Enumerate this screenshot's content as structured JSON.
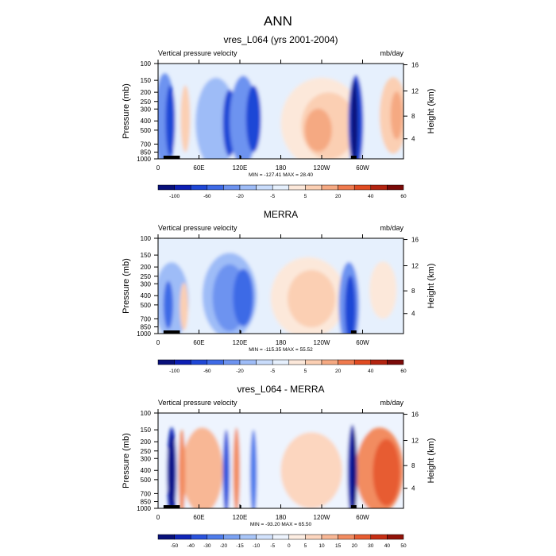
{
  "title": "ANN",
  "colors": {
    "seq": [
      "#08107a",
      "#0d1fb4",
      "#1f47d6",
      "#3e6ae6",
      "#6d93f0",
      "#9ebcf7",
      "#c9dcfb",
      "#e6f0fd",
      "#fce8da",
      "#fbcfb3",
      "#f5a982",
      "#ef7a4e",
      "#e04b21",
      "#b32410",
      "#7a0a08"
    ],
    "diff": [
      "#08107a",
      "#0f25b8",
      "#2a53dd",
      "#4e7ceb",
      "#7ba2f3",
      "#a8c5f8",
      "#d2e2fc",
      "#eef4fe",
      "#fdeee3",
      "#fcd6bf",
      "#f8b795",
      "#f28c61",
      "#e75c31",
      "#c72f14",
      "#921208"
    ]
  },
  "chart_data": [
    {
      "type": "heatmap",
      "title": "vres_L064 (yrs 2001-2004)",
      "left_label": "Vertical pressure velocity",
      "right_label": "mb/day",
      "ylabel": "Pressure (mb)",
      "y2label": "Height (km)",
      "x_ticks": [
        "0",
        "60E",
        "120E",
        "180",
        "120W",
        "60W"
      ],
      "y_ticks": [
        "100",
        "150",
        "200",
        "250",
        "300",
        "400",
        "500",
        "700",
        "850",
        "1000"
      ],
      "y2_ticks": [
        "16",
        "12",
        "8",
        "4"
      ],
      "minmax": "MIN = -127.41  MAX =  28.40",
      "colorbar_labels": [
        "-100",
        "-60",
        "-20",
        "-5",
        "5",
        "20",
        "40",
        "60"
      ],
      "palette": "seq"
    },
    {
      "type": "heatmap",
      "title": "MERRA",
      "left_label": "Vertical pressure velocity",
      "right_label": "mb/day",
      "ylabel": "Pressure (mb)",
      "y2label": "Height (km)",
      "x_ticks": [
        "0",
        "60E",
        "120E",
        "180",
        "120W",
        "60W"
      ],
      "y_ticks": [
        "100",
        "150",
        "200",
        "250",
        "300",
        "400",
        "500",
        "700",
        "850",
        "1000"
      ],
      "y2_ticks": [
        "16",
        "12",
        "8",
        "4"
      ],
      "minmax": "MIN = -115.35  MAX =  55.52",
      "colorbar_labels": [
        "-100",
        "-60",
        "-20",
        "-5",
        "5",
        "20",
        "40",
        "60"
      ],
      "palette": "seq"
    },
    {
      "type": "heatmap",
      "title": "vres_L064 - MERRA",
      "left_label": "Vertical pressure velocity",
      "right_label": "mb/day",
      "ylabel": "Pressure (mb)",
      "y2label": "Height (km)",
      "x_ticks": [
        "0",
        "60E",
        "120E",
        "180",
        "120W",
        "60W"
      ],
      "y_ticks": [
        "100",
        "150",
        "200",
        "250",
        "300",
        "400",
        "500",
        "700",
        "850",
        "1000"
      ],
      "y2_ticks": [
        "16",
        "12",
        "8",
        "4"
      ],
      "minmax": "MIN = -93.20  MAX =  65.50",
      "colorbar_labels": [
        "-50",
        "-40",
        "-30",
        "-20",
        "-15",
        "-10",
        "-5",
        "0",
        "5",
        "10",
        "15",
        "20",
        "30",
        "40",
        "50"
      ],
      "palette": "diff"
    }
  ]
}
